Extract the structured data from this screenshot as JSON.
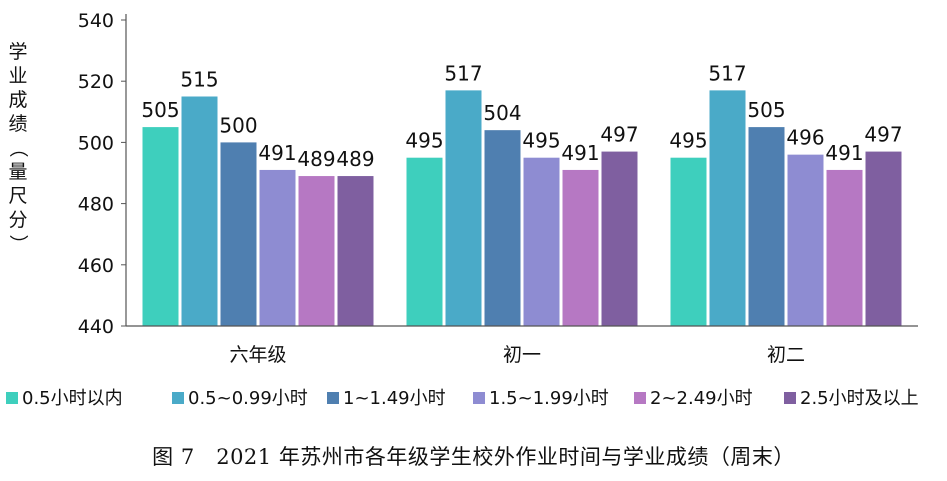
{
  "caption": "图 7　2021 年苏州市各年级学生校外作业时间与学业成绩（周末）",
  "chart_data": {
    "type": "bar",
    "title": "",
    "xlabel": "",
    "ylabel": "学业成绩（量尺分）",
    "ylim": [
      440,
      540
    ],
    "yticks": [
      440,
      460,
      480,
      500,
      520,
      540
    ],
    "grid": false,
    "legend": "bottom",
    "categories": [
      "六年级",
      "初一",
      "初二"
    ],
    "series": [
      {
        "name": "0.5小时以内",
        "color": "#3ecfbd",
        "values": [
          505,
          495,
          495
        ]
      },
      {
        "name": "0.5~0.99小时",
        "color": "#4aaac8",
        "values": [
          515,
          517,
          517
        ]
      },
      {
        "name": "1~1.49小时",
        "color": "#4f7fb0",
        "values": [
          500,
          504,
          505
        ]
      },
      {
        "name": "1.5~1.99小时",
        "color": "#8e8cd2",
        "values": [
          491,
          495,
          496
        ]
      },
      {
        "name": "2~2.49小时",
        "color": "#b678c3",
        "values": [
          489,
          491,
          491
        ]
      },
      {
        "name": "2.5小时及以上",
        "color": "#7f5fa0",
        "values": [
          489,
          497,
          497
        ]
      }
    ]
  }
}
